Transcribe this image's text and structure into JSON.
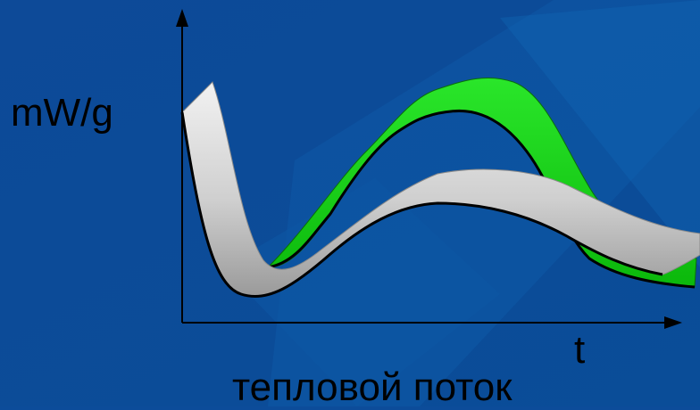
{
  "diagram": {
    "y_axis_label": "mW/g",
    "x_axis_label": "t",
    "caption": "тепловой поток",
    "colors": {
      "background": "#0c4c9a",
      "ribbon_green": "#16d616",
      "ribbon_white": "#d9d9d9",
      "axis": "#000000"
    }
  }
}
